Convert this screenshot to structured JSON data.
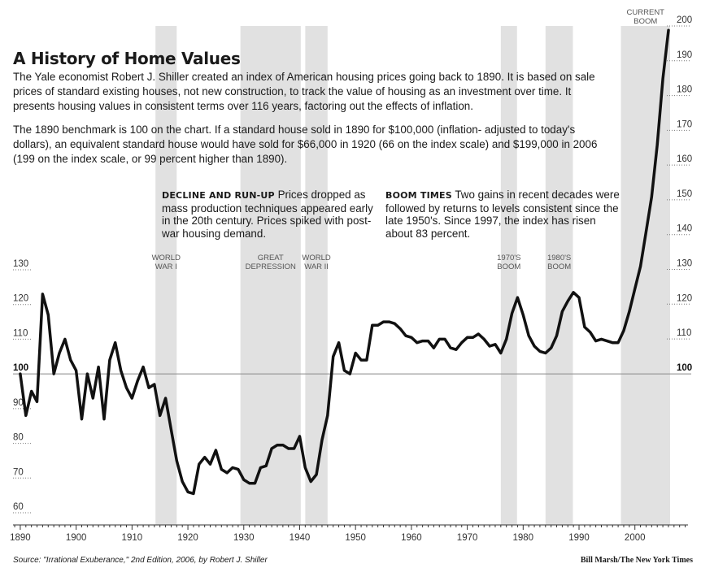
{
  "page": {
    "title": "A History of Home Values",
    "intro_p1": "The Yale economist Robert J. Shiller created an index of American housing prices going back to 1890. It is based on sale prices of standard existing houses, not new construction, to track the value of housing as an investment over time. It presents housing values in consistent terms over 116 years, factoring out the effects of inflation.",
    "intro_p2": "The 1890 benchmark is 100 on the chart. If a standard house sold in 1890 for $100,000 (inflation- adjusted to today's dollars), an equivalent standard house would have sold for $66,000 in 1920 (66 on the index scale) and $199,000 in 2006 (199 on the index scale, or 99 percent higher than 1890).",
    "note1_head": "DECLINE AND RUN-UP",
    "note1_body": "Prices dropped as mass production techniques appeared early in the 20th century. Prices spiked with post-war housing demand.",
    "note2_head": "BOOM TIMES",
    "note2_body": "Two gains in recent decades were followed by returns to levels consistent since the late 1950's. Since 1997, the index has risen about 83 percent.",
    "source": "Source: \"Irrational Exuberance,\" 2nd Edition, 2006, by Robert J. Shiller",
    "credit": "Bill Marsh/The New York Times"
  },
  "chart_data": {
    "type": "line",
    "title": "A History of Home Values",
    "xlim": [
      1888.7,
      2009.5
    ],
    "ylim_left": [
      60,
      130
    ],
    "ylim_right": [
      60,
      200
    ],
    "left_ticks": [
      60,
      70,
      80,
      90,
      100,
      110,
      120,
      130
    ],
    "right_ticks": [
      100,
      110,
      120,
      130,
      140,
      150,
      160,
      170,
      180,
      190,
      200
    ],
    "baseline": 100,
    "x_ticks": [
      1890,
      1900,
      1910,
      1920,
      1930,
      1940,
      1950,
      1960,
      1970,
      1980,
      1990,
      2000
    ],
    "grid": false,
    "shaded_periods": [
      {
        "label_lines": [
          "WORLD",
          "WAR I"
        ],
        "start": 1914.2,
        "end": 1918.0
      },
      {
        "label_lines": [
          "GREAT",
          "DEPRESSION"
        ],
        "start": 1929.4,
        "end": 1940.2
      },
      {
        "label_lines": [
          "WORLD",
          "WAR II"
        ],
        "start": 1941.0,
        "end": 1945.0
      },
      {
        "label_lines": [
          "1970'S",
          "BOOM"
        ],
        "start": 1976.0,
        "end": 1978.9
      },
      {
        "label_lines": [
          "1980'S",
          "BOOM"
        ],
        "start": 1984.0,
        "end": 1988.9
      },
      {
        "label_lines": [
          "CURRENT",
          "BOOM"
        ],
        "start": 1997.5,
        "end": 2006.3
      }
    ],
    "series": [
      {
        "x": [
          1890,
          1891,
          1892,
          1893,
          1894,
          1895,
          1896,
          1897,
          1898,
          1899,
          1900,
          1901,
          1902,
          1903,
          1904,
          1905,
          1906,
          1907,
          1908,
          1909,
          1910,
          1911,
          1912,
          1913,
          1914,
          1915,
          1916,
          1917,
          1918,
          1919,
          1920,
          1921,
          1922,
          1923,
          1924,
          1925,
          1926,
          1927,
          1928,
          1929,
          1930,
          1931,
          1932,
          1933,
          1934,
          1935,
          1936,
          1937,
          1938,
          1939,
          1940,
          1941,
          1942,
          1943,
          1944,
          1945,
          1946,
          1947,
          1948,
          1949,
          1950,
          1951,
          1952,
          1953,
          1954,
          1955,
          1956,
          1957,
          1958,
          1959,
          1960,
          1961,
          1962,
          1963,
          1964,
          1965,
          1966,
          1967,
          1968,
          1969,
          1970,
          1971,
          1972,
          1973,
          1974,
          1975,
          1976,
          1977,
          1978,
          1979,
          1980,
          1981,
          1982,
          1983,
          1984,
          1985,
          1986,
          1987,
          1988,
          1989,
          1990,
          1991,
          1992,
          1993,
          1994,
          1995,
          1996,
          1997,
          1998,
          1999,
          2000,
          2001,
          2002,
          2003,
          2004,
          2005,
          2006
        ],
        "y": [
          100,
          88,
          95,
          92,
          123,
          117,
          100,
          106,
          110,
          104,
          101,
          87,
          100,
          93,
          102,
          87,
          104,
          109,
          101,
          96,
          93,
          98,
          102,
          96,
          97,
          88,
          93,
          84,
          75,
          69,
          66,
          65.5,
          74,
          76,
          74,
          78,
          72.5,
          71.5,
          73,
          72.5,
          69.5,
          68.5,
          68.5,
          73,
          73.5,
          78.5,
          79.5,
          79.5,
          78.5,
          78.5,
          82,
          73,
          69,
          71,
          81,
          88,
          105,
          109,
          101,
          100,
          106,
          104,
          104,
          114,
          114,
          115,
          115,
          114.5,
          113,
          111,
          110.5,
          109,
          109.5,
          109.5,
          107.5,
          110,
          110,
          107.5,
          107,
          109,
          110.5,
          110.5,
          111.5,
          110,
          108,
          108.5,
          106,
          110,
          117.5,
          122,
          117,
          111,
          108,
          106.5,
          106,
          107.5,
          111,
          118,
          121,
          123.5,
          122,
          113.5,
          112,
          109.5,
          110,
          109.5,
          109,
          109,
          112.5,
          118,
          124.5,
          131,
          141,
          151,
          166,
          185,
          199
        ]
      }
    ],
    "annotations": [
      "DECLINE AND RUN-UP Prices dropped as mass production techniques appeared early in the 20th century. Prices spiked with post-war housing demand.",
      "BOOM TIMES Two gains in recent decades were followed by returns to levels consistent since the late 1950's. Since 1997, the index has risen about 83 percent."
    ],
    "colors": {
      "line": "#111111",
      "shade": "#e1e1e1",
      "baseline": "#888888"
    }
  }
}
